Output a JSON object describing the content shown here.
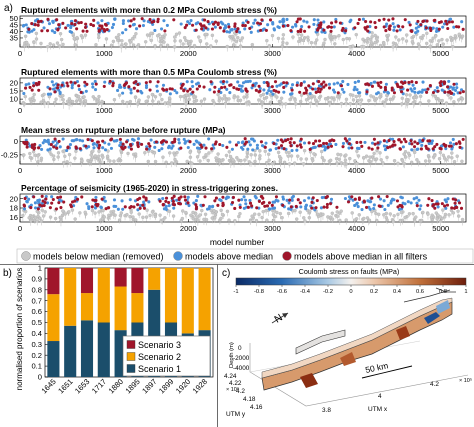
{
  "panel_a": {
    "letter": "a)",
    "xlabel": "model number",
    "xticks": [
      "0",
      "1000",
      "2000",
      "3000",
      "4000",
      "5000"
    ],
    "legend": [
      {
        "label": "models below median (removed)",
        "color": "#c8c8c8"
      },
      {
        "label": "models above median",
        "color": "#4a90d9"
      },
      {
        "label": "models above median in all filters",
        "color": "#a0162b"
      }
    ]
  },
  "panel_b": {
    "letter": "b)",
    "ylabel": "normalised proportion of scenarios",
    "yticks": [
      "0",
      "0.1",
      "0.2",
      "0.3",
      "0.4",
      "0.5",
      "0.6",
      "0.7",
      "0.8",
      "0.9",
      "1"
    ]
  },
  "panel_c": {
    "letter": "c)",
    "colorbar_title": "Coulomb stress on faults (MPa)",
    "colorbar_ticks": [
      "-1",
      "-0.8",
      "-0.6",
      "-0.4",
      "-0.2",
      "0",
      "0.2",
      "0.4",
      "0.6",
      "0.8",
      "1"
    ],
    "north_label": "N",
    "depth_label": "Depth (m)",
    "depth_ticks": [
      "0",
      "-2000",
      "-4000"
    ],
    "utm_y_label": "UTM y",
    "utm_y_ticks": [
      "4.24",
      "4.22",
      "4.2",
      "4.18",
      "4.16"
    ],
    "utm_y_exponent": "× 10⁶",
    "utm_x_label": "UTM x",
    "utm_x_ticks": [
      "3.8",
      "4",
      "4.2"
    ],
    "utm_x_exponent": "× 10⁵",
    "scale_label": "50 km"
  },
  "chart_data": [
    {
      "type": "scatter",
      "title": "Ruptured elements with more than 0.2 MPa Coulomb stress (%)",
      "xlabel": "model number",
      "xlim": [
        0,
        5300
      ],
      "ylim": [
        28,
        52
      ],
      "yticks": [
        "35",
        "40",
        "45",
        "50"
      ],
      "series": [
        {
          "name": "models below median (removed)",
          "band": [
            28,
            39
          ]
        },
        {
          "name": "models above median",
          "band": [
            39,
            50
          ]
        },
        {
          "name": "models above median in all filters",
          "band": [
            40,
            50
          ]
        }
      ]
    },
    {
      "type": "scatter",
      "title": "Ruptured elements with more than 0.5 MPa Coulomb stress (%)",
      "xlabel": "model number",
      "xlim": [
        0,
        5300
      ],
      "ylim": [
        7,
        23
      ],
      "yticks": [
        "10",
        "15",
        "20"
      ],
      "series": [
        {
          "name": "models below median (removed)",
          "band": [
            7,
            13
          ]
        },
        {
          "name": "models above median",
          "band": [
            13,
            21
          ]
        },
        {
          "name": "models above median in all filters",
          "band": [
            13.5,
            21
          ]
        }
      ]
    },
    {
      "type": "scatter",
      "title": "Mean stress on rupture plane before rupture (MPa)",
      "xlabel": "model number",
      "xlim": [
        0,
        5300
      ],
      "ylim": [
        -0.42,
        0.1
      ],
      "yticks": [
        "0",
        "-0.25"
      ],
      "series": [
        {
          "name": "models below median (removed)",
          "band": [
            -0.42,
            -0.17
          ]
        },
        {
          "name": "models above median",
          "band": [
            -0.17,
            0.05
          ]
        },
        {
          "name": "models above median in all filters",
          "band": [
            -0.15,
            0.05
          ]
        }
      ]
    },
    {
      "type": "scatter",
      "title": "Percentage of seismicity (1965-2020) in stress-triggering zones.",
      "xlabel": "model number",
      "xlim": [
        0,
        5300
      ],
      "ylim": [
        15,
        21
      ],
      "yticks": [
        "16",
        "18",
        "20"
      ],
      "series": [
        {
          "name": "models below median (removed)",
          "band": [
            15.2,
            17.6
          ]
        },
        {
          "name": "models above median",
          "band": [
            17.6,
            20.5
          ]
        },
        {
          "name": "models above median in all filters",
          "band": [
            17.8,
            20.5
          ]
        }
      ]
    },
    {
      "type": "bar",
      "stacked": true,
      "ylabel": "normalised proportion of scenarios",
      "ylim": [
        0,
        1
      ],
      "categories": [
        "1645",
        "1651",
        "1653",
        "1717",
        "1880",
        "1895",
        "1897",
        "1899",
        "1920",
        "1928"
      ],
      "series": [
        {
          "name": "Scenario 1",
          "color": "#1b4e6b",
          "values": [
            0.33,
            0.47,
            0.52,
            0.5,
            0.43,
            0.5,
            0.8,
            0.5,
            0.4,
            0.43
          ]
        },
        {
          "name": "Scenario 2",
          "color": "#f5a200",
          "values": [
            0.43,
            0.53,
            0.25,
            0.5,
            0.4,
            0.27,
            0.2,
            0.5,
            0.6,
            0.57
          ]
        },
        {
          "name": "Scenario 3",
          "color": "#a0162b",
          "values": [
            0.24,
            0.0,
            0.23,
            0.0,
            0.17,
            0.23,
            0.0,
            0.0,
            0.0,
            0.0
          ]
        }
      ]
    }
  ]
}
